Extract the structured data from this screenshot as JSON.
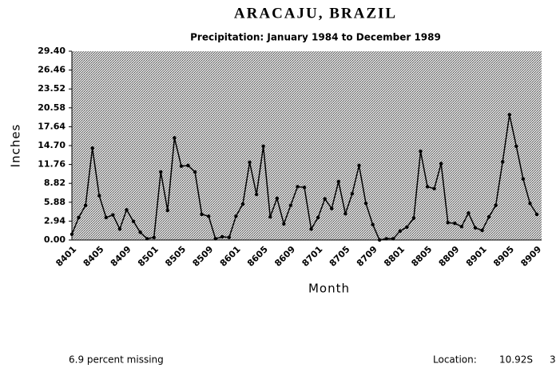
{
  "chart_data": {
    "type": "line",
    "title": "ARACAJU, BRAZIL",
    "subtitle": "Precipitation: January 1984 to December 1989",
    "y_label": "Inches",
    "x_label": "Month",
    "missing_note": "6.9 percent missing",
    "location_label": "Location:",
    "location_value": "10.92S",
    "location_cut": "3",
    "categories": [
      "8401",
      null,
      null,
      null,
      "8405",
      null,
      null,
      null,
      "8409",
      null,
      null,
      null,
      "8501",
      null,
      null,
      null,
      "8505",
      null,
      null,
      null,
      "8509",
      null,
      null,
      null,
      "8601",
      null,
      null,
      null,
      "8605",
      null,
      null,
      null,
      "8609",
      null,
      null,
      null,
      "8701",
      null,
      null,
      null,
      "8705",
      null,
      null,
      null,
      "8709",
      null,
      null,
      null,
      "8801",
      null,
      null,
      null,
      "8805",
      null,
      null,
      null,
      "8809",
      null,
      null,
      null,
      "8901",
      null,
      null,
      null,
      "8905",
      null,
      null,
      null,
      "8909"
    ],
    "series": [
      {
        "name": "Precipitation",
        "color": "#000000",
        "values": [
          0.9,
          3.5,
          5.4,
          14.3,
          6.9,
          3.5,
          3.9,
          1.7,
          4.7,
          2.9,
          1.2,
          0.2,
          0.4,
          10.6,
          4.6,
          15.9,
          11.5,
          11.6,
          10.6,
          4.0,
          3.7,
          0.2,
          0.5,
          0.4,
          3.7,
          5.6,
          12.1,
          7.1,
          14.6,
          3.6,
          6.5,
          2.5,
          5.4,
          8.3,
          8.2,
          1.7,
          3.5,
          6.4,
          4.9,
          9.1,
          4.1,
          7.2,
          11.6,
          5.7,
          2.4,
          0,
          0.2,
          0.2,
          1.4,
          2.0,
          3.4,
          13.8,
          8.3,
          8.0,
          11.9,
          2.7,
          2.6,
          2.1,
          4.2,
          1.9,
          1.5,
          3.6,
          5.4,
          12.2,
          19.5,
          14.6,
          9.5,
          5.7,
          4.0
        ]
      }
    ],
    "ylim": [
      0,
      29.4
    ],
    "yticks": [
      {
        "value": 0,
        "label": "0.00"
      },
      2.94,
      5.88,
      8.82,
      11.76,
      {
        "value": 14.7,
        "label": "14.70"
      },
      17.64,
      20.58,
      23.52,
      26.46,
      {
        "value": 29.4,
        "label": "29.40"
      }
    ]
  }
}
